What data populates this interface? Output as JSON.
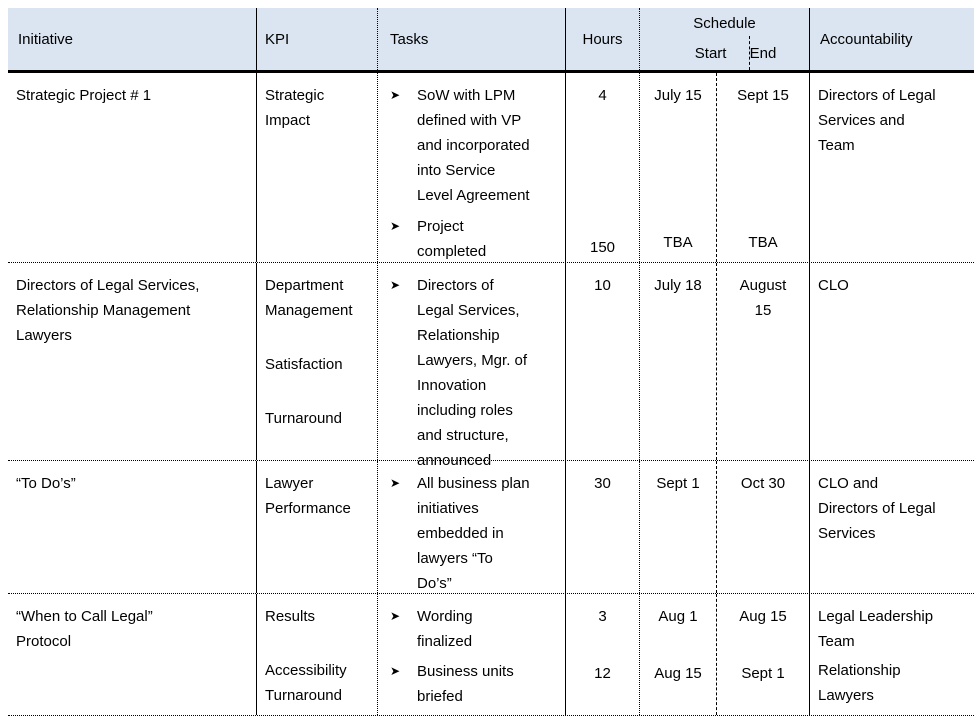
{
  "icons": {
    "bullet": "➤"
  },
  "colors": {
    "header_bg": "#dbe5f1",
    "border": "#000000",
    "text": "#000000"
  },
  "header": {
    "initiative": "Initiative",
    "kpi": "KPI",
    "tasks": "Tasks",
    "hours": "Hours",
    "schedule": "Schedule",
    "start": "Start",
    "end": "End",
    "accountability": "Accountability"
  },
  "rows": [
    {
      "initiative": "Strategic Project # 1",
      "kpi": [
        "Strategic\nImpact"
      ],
      "tasks": [
        "SoW with LPM\ndefined with VP\nand incorporated\ninto Service\nLevel Agreement",
        "Project\ncompleted"
      ],
      "hours": [
        "4",
        "150"
      ],
      "start": [
        "July 15",
        "TBA"
      ],
      "end": [
        "Sept 15",
        "TBA"
      ],
      "accountability": [
        "Directors of Legal\nServices and\nTeam"
      ]
    },
    {
      "initiative": "Directors of Legal Services,\nRelationship Management\nLawyers",
      "kpi": [
        "Department\nManagement",
        "Satisfaction",
        "Turnaround"
      ],
      "tasks": [
        "Directors of\nLegal Services,\nRelationship\nLawyers, Mgr. of\nInnovation\nincluding roles\nand structure,\nannounced"
      ],
      "hours": [
        "10"
      ],
      "start": [
        "July 18"
      ],
      "end": [
        "August\n15"
      ],
      "accountability": [
        "CLO"
      ]
    },
    {
      "initiative": "“To Do’s”",
      "kpi": [
        "Lawyer\nPerformance"
      ],
      "tasks": [
        "All business plan\ninitiatives\nembedded in\nlawyers “To\nDo’s”"
      ],
      "hours": [
        "30"
      ],
      "start": [
        "Sept 1"
      ],
      "end": [
        "Oct 30"
      ],
      "accountability": [
        "CLO and\nDirectors of Legal\nServices"
      ]
    },
    {
      "initiative": "“When to Call Legal”\nProtocol",
      "kpi": [
        "Results",
        "Accessibility\nTurnaround"
      ],
      "tasks": [
        "Wording\nfinalized",
        "Business units\nbriefed"
      ],
      "hours": [
        "3",
        "12"
      ],
      "start": [
        "Aug 1",
        "Aug 15"
      ],
      "end": [
        "Aug 15",
        "Sept 1"
      ],
      "accountability": [
        "Legal Leadership\nTeam",
        "Relationship\nLawyers"
      ]
    }
  ]
}
